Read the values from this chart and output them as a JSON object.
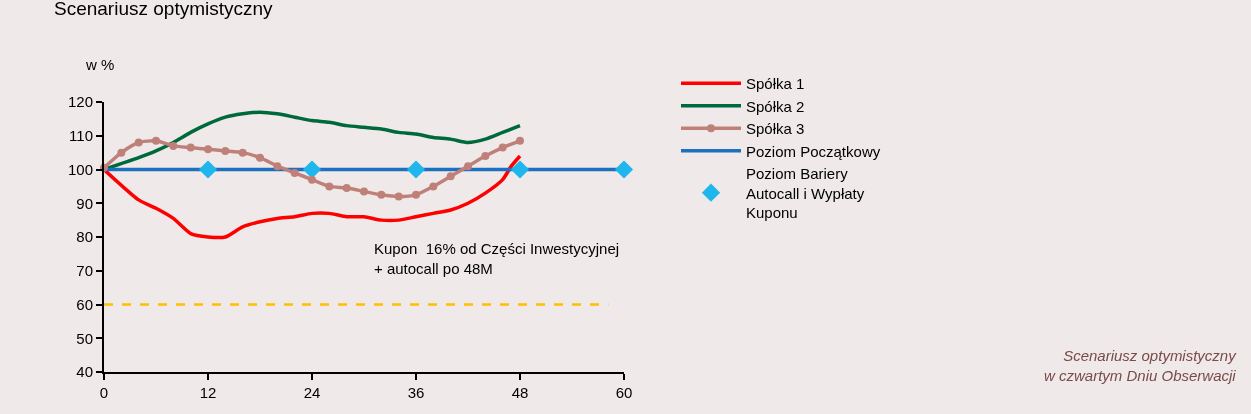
{
  "chart_data": {
    "type": "line",
    "title": "Scenariusz optymistyczny",
    "ylabel": "w %",
    "xlim": [
      0,
      60
    ],
    "xticks": [
      0,
      12,
      24,
      36,
      48,
      60
    ],
    "ylim": [
      40,
      120
    ],
    "yticks": [
      40,
      50,
      60,
      70,
      80,
      90,
      100,
      110,
      120
    ],
    "grid": false,
    "legend": "right",
    "line_style": "solid",
    "series": [
      {
        "name": "Spółka 1",
        "color": "#ff0000",
        "marker": "none",
        "x": [
          0,
          4,
          6,
          8,
          10,
          12,
          14,
          16,
          18,
          20,
          22,
          24,
          26,
          28,
          30,
          32,
          34,
          36,
          38,
          40,
          42,
          44,
          46,
          47,
          48
        ],
        "values": [
          100,
          91,
          88.5,
          85.5,
          81,
          80,
          80,
          83,
          84.5,
          85.5,
          86,
          87,
          87,
          86,
          86,
          85,
          85,
          86,
          87,
          88,
          90,
          93,
          97,
          101,
          104
        ]
      },
      {
        "name": "Spółka 2",
        "color": "#00693c",
        "marker": "none",
        "x": [
          0,
          4,
          6,
          8,
          10,
          12,
          14,
          16,
          18,
          20,
          22,
          24,
          26,
          28,
          30,
          32,
          34,
          36,
          38,
          40,
          42,
          44,
          46,
          48
        ],
        "values": [
          100,
          103.5,
          105.5,
          108,
          111,
          113.5,
          115.5,
          116.5,
          117,
          116.5,
          115.5,
          114.5,
          114,
          113,
          112.5,
          112,
          111,
          110.5,
          109.5,
          109,
          108,
          109,
          111,
          113
        ]
      },
      {
        "name": "Spółka 3",
        "color": "#c0807a",
        "marker": "circle",
        "x": [
          0,
          2,
          4,
          6,
          8,
          10,
          12,
          14,
          16,
          18,
          20,
          22,
          24,
          26,
          28,
          30,
          32,
          34,
          36,
          38,
          40,
          42,
          44,
          46,
          48
        ],
        "values": [
          100.5,
          105,
          108,
          108.5,
          107,
          106.5,
          106,
          105.5,
          105,
          103.5,
          101,
          99,
          97,
          95,
          94.5,
          93.5,
          92.5,
          92,
          92.5,
          95,
          98,
          101,
          104,
          106.5,
          108.5
        ]
      },
      {
        "name": "Poziom Początkowy",
        "color": "#1f6fc0",
        "marker": "none",
        "x": [
          0,
          60
        ],
        "values": [
          100,
          100
        ]
      },
      {
        "name": "Poziom Bariery\nAutocall i Wypłaty\nKuponu",
        "color": "#1eb6ec",
        "type": "scatter",
        "marker": "diamond",
        "x": [
          12,
          24,
          36,
          48,
          60
        ],
        "values": [
          100,
          100,
          100,
          100,
          100
        ]
      }
    ],
    "ref_lines": [
      {
        "axis": "y",
        "value": 60,
        "color": "#ffc000",
        "line_style": "dashed"
      }
    ],
    "annotations": [
      "Kupon  16% od Części Inwestycyjnej\n+ autocall po 48M",
      "Scenariusz optymistyczny\nw czwartym Dniu Obserwacji"
    ]
  }
}
